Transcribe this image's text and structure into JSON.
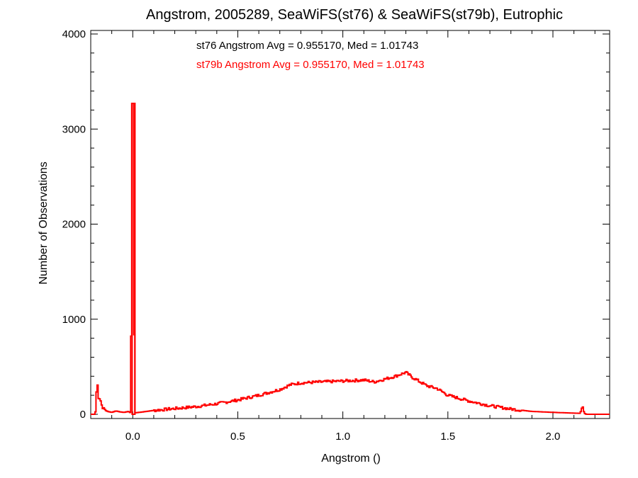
{
  "chart_data": {
    "type": "histogram",
    "title": "Angstrom, 2005289, SeaWiFS(st76) & SeaWiFS(st79b), Eutrophic",
    "xlabel": "Angstrom ()",
    "ylabel": "Number of Observations",
    "xlim": [
      -0.2,
      2.27
    ],
    "ylim": [
      0,
      4000
    ],
    "x_ticks": [
      0.0,
      0.5,
      1.0,
      1.5,
      2.0
    ],
    "x_tick_labels": [
      "0.0",
      "0.5",
      "1.0",
      "1.5",
      "2.0"
    ],
    "y_ticks": [
      0,
      1000,
      2000,
      3000,
      4000
    ],
    "y_tick_labels": [
      "0",
      "1000",
      "2000",
      "3000",
      "4000"
    ],
    "grid": false,
    "legend_position": "top-center",
    "bin_width": 0.01,
    "annotations": [
      {
        "text": "st76 Angstrom Avg = 0.955170, Med = 1.01743",
        "color": "#000000"
      },
      {
        "text": "st79b Angstrom Avg = 0.955170, Med = 1.01743",
        "color": "#ff0000"
      }
    ],
    "series": [
      {
        "color": "#ff0000",
        "profile_points": [
          [
            -0.2,
            0
          ],
          [
            -0.18,
            0
          ],
          [
            -0.175,
            50
          ],
          [
            -0.17,
            420
          ],
          [
            -0.165,
            190
          ],
          [
            -0.16,
            165
          ],
          [
            -0.155,
            175
          ],
          [
            -0.15,
            110
          ],
          [
            -0.14,
            60
          ],
          [
            -0.12,
            30
          ],
          [
            -0.1,
            20
          ],
          [
            -0.08,
            35
          ],
          [
            -0.06,
            25
          ],
          [
            -0.04,
            20
          ],
          [
            -0.02,
            30
          ],
          [
            -0.01,
            15
          ],
          [
            0.0,
            3270
          ],
          [
            0.01,
            15
          ],
          [
            0.05,
            25
          ],
          [
            0.1,
            40
          ],
          [
            0.2,
            60
          ],
          [
            0.25,
            70
          ],
          [
            0.3,
            80
          ],
          [
            0.4,
            110
          ],
          [
            0.5,
            150
          ],
          [
            0.6,
            200
          ],
          [
            0.7,
            260
          ],
          [
            0.75,
            310
          ],
          [
            0.8,
            330
          ],
          [
            0.9,
            340
          ],
          [
            1.0,
            350
          ],
          [
            1.1,
            360
          ],
          [
            1.15,
            340
          ],
          [
            1.2,
            370
          ],
          [
            1.25,
            400
          ],
          [
            1.3,
            440
          ],
          [
            1.33,
            390
          ],
          [
            1.4,
            300
          ],
          [
            1.45,
            270
          ],
          [
            1.5,
            200
          ],
          [
            1.6,
            140
          ],
          [
            1.7,
            90
          ],
          [
            1.8,
            55
          ],
          [
            1.9,
            30
          ],
          [
            2.0,
            20
          ],
          [
            2.1,
            12
          ],
          [
            2.13,
            10
          ],
          [
            2.14,
            80
          ],
          [
            2.15,
            10
          ],
          [
            2.16,
            0
          ],
          [
            2.27,
            0
          ]
        ],
        "noise": 15
      }
    ]
  }
}
